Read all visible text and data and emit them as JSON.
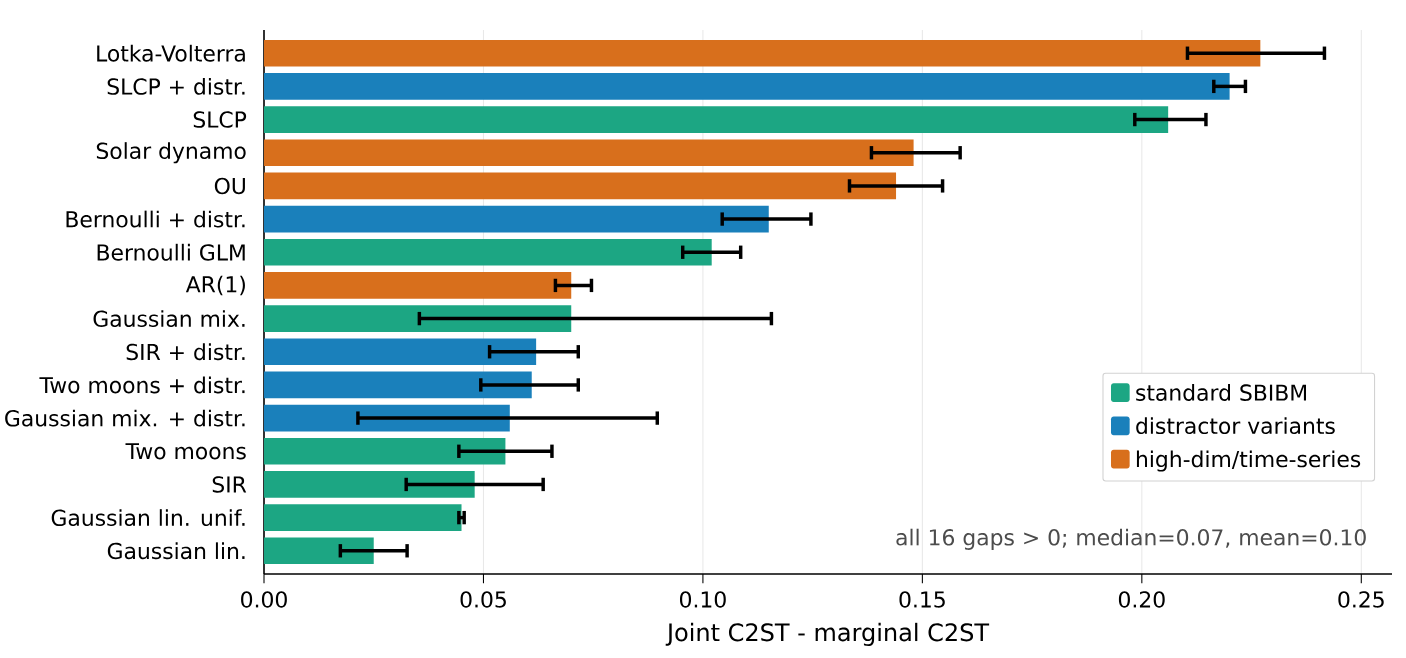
{
  "chart_data": {
    "type": "bar",
    "orientation": "horizontal",
    "categories": [
      "Lotka-Volterra",
      "SLCP + distr.",
      "SLCP",
      "Solar dynamo",
      "OU",
      "Bernoulli + distr.",
      "Bernoulli GLM",
      "AR(1)",
      "Gaussian mix.",
      "SIR + distr.",
      "Two moons + distr.",
      "Gaussian mix. + distr.",
      "Two moons",
      "SIR",
      "Gaussian lin. unif.",
      "Gaussian lin."
    ],
    "series": [
      {
        "name": "standard SBIBM",
        "color": "#1ca683",
        "values": [
          null,
          null,
          0.206,
          null,
          null,
          null,
          0.102,
          null,
          0.07,
          null,
          null,
          null,
          0.055,
          0.048,
          0.045,
          0.025
        ],
        "errors": [
          null,
          null,
          [
            0.198,
            0.215
          ],
          null,
          null,
          null,
          [
            0.095,
            0.109
          ],
          null,
          [
            0.035,
            0.116
          ],
          null,
          null,
          null,
          [
            0.044,
            0.066
          ],
          [
            0.032,
            0.064
          ],
          [
            0.044,
            0.046
          ],
          [
            0.017,
            0.033
          ]
        ]
      },
      {
        "name": "distractor variants",
        "color": "#1a80bb",
        "values": [
          null,
          0.22,
          null,
          null,
          null,
          0.115,
          null,
          null,
          null,
          0.062,
          0.061,
          0.056,
          null,
          null,
          null,
          null
        ],
        "errors": [
          null,
          [
            0.216,
            0.224
          ],
          null,
          null,
          null,
          [
            0.104,
            0.125
          ],
          null,
          null,
          null,
          [
            0.051,
            0.072
          ],
          [
            0.049,
            0.072
          ],
          [
            0.021,
            0.09
          ],
          null,
          null,
          null,
          null
        ]
      },
      {
        "name": "high-dim/time-series",
        "color": "#d86f1c",
        "values": [
          0.227,
          null,
          null,
          0.148,
          0.144,
          null,
          null,
          0.07,
          null,
          null,
          null,
          null,
          null,
          null,
          null,
          null
        ],
        "errors": [
          [
            0.21,
            0.242
          ],
          null,
          null,
          [
            0.138,
            0.159
          ],
          [
            0.133,
            0.155
          ],
          null,
          null,
          [
            0.066,
            0.075
          ],
          null,
          null,
          null,
          null,
          null,
          null,
          null,
          null
        ]
      }
    ],
    "xlabel": "Joint C2ST - marginal C2ST",
    "xlim": [
      0,
      0.257
    ],
    "xticks": [
      {
        "value": 0,
        "label": "0.00"
      },
      0.05,
      {
        "value": 0.1,
        "label": "0.10"
      },
      0.15,
      {
        "value": 0.2,
        "label": "0.20"
      },
      0.25
    ],
    "grid": "x",
    "legend": "bottom right",
    "annotations": [
      "all 16 gaps > 0; median=0.07, mean=0.10"
    ]
  }
}
